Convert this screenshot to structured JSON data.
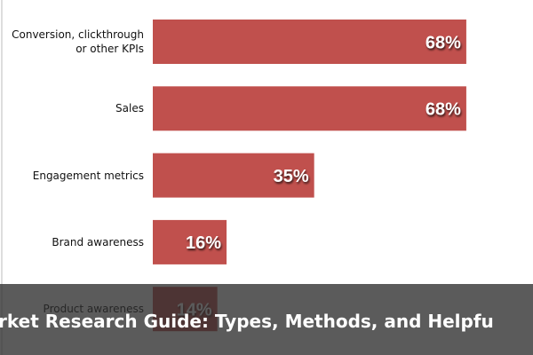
{
  "chart_data": {
    "type": "bar",
    "orientation": "horizontal",
    "categories": [
      "Conversion, clickthrough or other KPIs",
      "Sales",
      "Engagement metrics",
      "Brand awareness",
      "Product awareness"
    ],
    "values": [
      68,
      68,
      35,
      16,
      14
    ],
    "value_labels": [
      "68%",
      "68%",
      "35%",
      "16%",
      "14%"
    ],
    "color": "#c0504d"
  },
  "overlay_caption": "rket Research Guide: Types, Methods, and Helpfu"
}
